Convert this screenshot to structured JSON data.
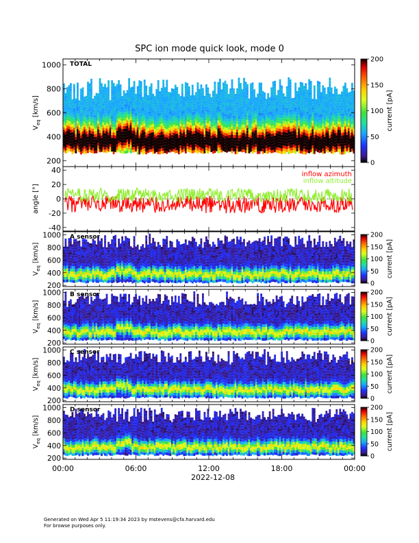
{
  "chart_data": {
    "type": "heatmap",
    "title": "SPC ion mode quick look, mode 0",
    "date_label": "2022-12-08",
    "x_ticks": [
      "00:00",
      "06:00",
      "12:00",
      "18:00",
      "00:00"
    ],
    "x_range_hours": [
      0,
      24
    ],
    "velocity_ylabel_base": "V",
    "velocity_ylabel_sub": "eq",
    "velocity_ylabel_unit": "[km/s]",
    "velocity_ylabel_unit_compact": "[km/s]",
    "panels": [
      {
        "kind": "spectrogram",
        "label": "TOTAL",
        "ylim": [
          150,
          1050
        ],
        "y_ticks": [
          200,
          400,
          600,
          800,
          1000
        ],
        "colorbar": {
          "label": "current [pA]",
          "range": [
            0,
            200
          ],
          "ticks": [
            "0",
            "50",
            "100",
            "150",
            "200"
          ]
        },
        "peak_velocity_kms": 350,
        "data_extent_kms": [
          250,
          880
        ]
      },
      {
        "kind": "line",
        "ylabel": "angle [°]",
        "ylim": [
          -45,
          45
        ],
        "y_ticks": [
          -40,
          -20,
          0,
          20,
          40
        ],
        "series": [
          {
            "name": "inflow azimuth",
            "color": "#ff0000",
            "mean_deg": -8,
            "range_deg": [
              -20,
              5
            ]
          },
          {
            "name": "inflow altitude",
            "color": "#90ee30",
            "mean_deg": 5,
            "range_deg": [
              -5,
              15
            ]
          }
        ]
      },
      {
        "kind": "spectrogram",
        "label": "A sensor",
        "ylim": [
          180,
          1050
        ],
        "y_ticks": [
          200,
          400,
          600,
          800,
          1000
        ],
        "colorbar": {
          "label": "current [pA]",
          "range": [
            0,
            200
          ],
          "ticks": [
            "0",
            "50",
            "100",
            "150",
            "200"
          ]
        },
        "peak_velocity_kms": 350
      },
      {
        "kind": "spectrogram",
        "label": "B sensor",
        "ylim": [
          180,
          1050
        ],
        "y_ticks": [
          200,
          400,
          600,
          800,
          1000
        ],
        "colorbar": {
          "label": "current [pA]",
          "range": [
            0,
            200
          ],
          "ticks": [
            "0",
            "50",
            "100",
            "150",
            "200"
          ]
        },
        "peak_velocity_kms": 350
      },
      {
        "kind": "spectrogram",
        "label": "C sensor",
        "ylim": [
          180,
          1050
        ],
        "y_ticks": [
          200,
          400,
          600,
          800,
          1000
        ],
        "colorbar": {
          "label": "current [pA]",
          "range": [
            0,
            200
          ],
          "ticks": [
            "0",
            "50",
            "100",
            "150",
            "200"
          ]
        },
        "peak_velocity_kms": 350
      },
      {
        "kind": "spectrogram",
        "label": "D sensor",
        "ylim": [
          180,
          1050
        ],
        "y_ticks": [
          200,
          400,
          600,
          800,
          1000
        ],
        "colorbar": {
          "label": "current [pA]",
          "range": [
            0,
            200
          ],
          "ticks": [
            "0",
            "50",
            "100",
            "150",
            "200"
          ]
        },
        "peak_velocity_kms": 350
      }
    ]
  },
  "footer": {
    "line1": "Generated on Wed Apr  5 11:19:34 2023 by mstevens@cfa.harvard.edu",
    "line2": "For browse purposes only."
  }
}
